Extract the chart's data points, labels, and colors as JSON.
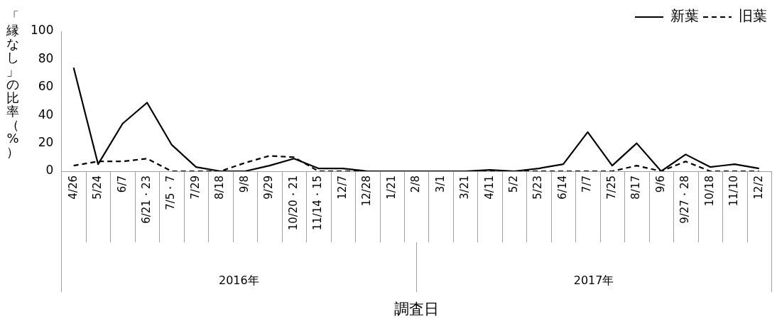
{
  "chart_data": {
    "type": "line",
    "ylabel": "「縁なし」の比率（%）",
    "xlabel": "調査日",
    "categories": [
      "4/26",
      "5/24",
      "6/7",
      "6/21・23",
      "7/5・7",
      "7/29",
      "8/18",
      "9/8",
      "9/29",
      "10/20・21",
      "11/14・15",
      "12/7",
      "12/28",
      "1/21",
      "2/8",
      "3/1",
      "3/21",
      "4/11",
      "5/2",
      "5/23",
      "6/14",
      "7/7",
      "7/25",
      "8/17",
      "9/6",
      "9/27・28",
      "10/18",
      "11/10",
      "12/2"
    ],
    "series": [
      {
        "name": "新葉",
        "color": "#000000",
        "line_style": "solid",
        "values": [
          74,
          5,
          34,
          49,
          19,
          3,
          0,
          0,
          4,
          9,
          2,
          2,
          0,
          0,
          0,
          0,
          0,
          1,
          0,
          2,
          5,
          28,
          4,
          20,
          0,
          12,
          3,
          5,
          2
        ]
      },
      {
        "name": "旧葉",
        "color": "#000000",
        "line_style": "dashed",
        "values": [
          4,
          7,
          7,
          9,
          0,
          0,
          0,
          6,
          11,
          10,
          0,
          0,
          0,
          0,
          0,
          0,
          0,
          0,
          0,
          0,
          0,
          0,
          0,
          4,
          0,
          7,
          0,
          0,
          0
        ]
      }
    ],
    "annotations": [
      "2016年",
      "2017年"
    ],
    "ylim": [
      0,
      100
    ],
    "yticks": [
      0,
      20,
      40,
      60,
      80,
      100
    ],
    "grid": false,
    "legend": "top right",
    "marker": "none"
  }
}
